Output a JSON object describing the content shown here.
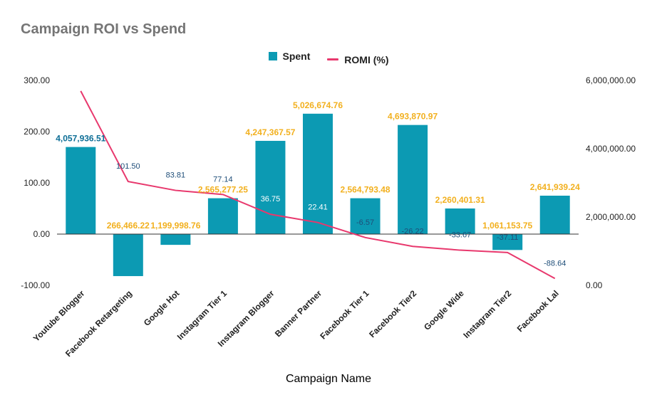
{
  "chart_data": {
    "type": "bar",
    "title": "Campaign ROI vs Spend",
    "xlabel": "Campaign Name",
    "categories": [
      "Youtube Blogger",
      "Facebook Retargeting",
      "Google Hot",
      "Instagram Tier 1",
      "Instagram Blogger",
      "Banner Partner",
      "Facebook Tier 1",
      "Facebook Tier2",
      "Google Wide",
      "Instagram Tier2",
      "Facebook Lal"
    ],
    "left_axis": {
      "ylim": [
        -100,
        300
      ],
      "ticks": [
        "300.00",
        "200.00",
        "100.00",
        "0.00",
        "-100.00"
      ]
    },
    "right_axis": {
      "ylim": [
        0,
        6000000
      ],
      "ticks": [
        "6,000,000.00",
        "4,000,000.00",
        "2,000,000.00",
        "0.00"
      ]
    },
    "legend_position": "top",
    "gridlines": false,
    "series": [
      {
        "name": "Spent",
        "kind": "bar",
        "axis": "left",
        "color": "#0c9ab3",
        "values": [
          170,
          -82,
          -21,
          70,
          182,
          235,
          70,
          213,
          50,
          -31,
          75
        ],
        "labels": [
          "4,057,936.51",
          "266,466.22",
          "1,199,998.76",
          "2,565,277.25",
          "4,247,367.57",
          "5,026,674.76",
          "2,564,793.48",
          "4,693,870.97",
          "2,260,401.31",
          "1,061,153.75",
          "2,641,939.24"
        ],
        "label_colors": [
          "#0d6e96",
          "#f2b01e",
          "#f2b01e",
          "#f2b01e",
          "#f2b01e",
          "#f2b01e",
          "#f2b01e",
          "#f2b01e",
          "#f2b01e",
          "#f2b01e",
          "#f2b01e"
        ]
      },
      {
        "name": "ROMI (%)",
        "kind": "line",
        "axis": "right",
        "color": "#e8386d",
        "values": [
          5690000,
          3040000,
          2780000,
          2660000,
          2080000,
          1840000,
          1400000,
          1140000,
          1030000,
          960000,
          200000
        ],
        "labels": [
          "",
          "101.50",
          "83.81",
          "77.14",
          "36.75",
          "22.41",
          "-6.57",
          "-26.22",
          "-33.67",
          "-37.11",
          "-88.64"
        ]
      }
    ]
  }
}
